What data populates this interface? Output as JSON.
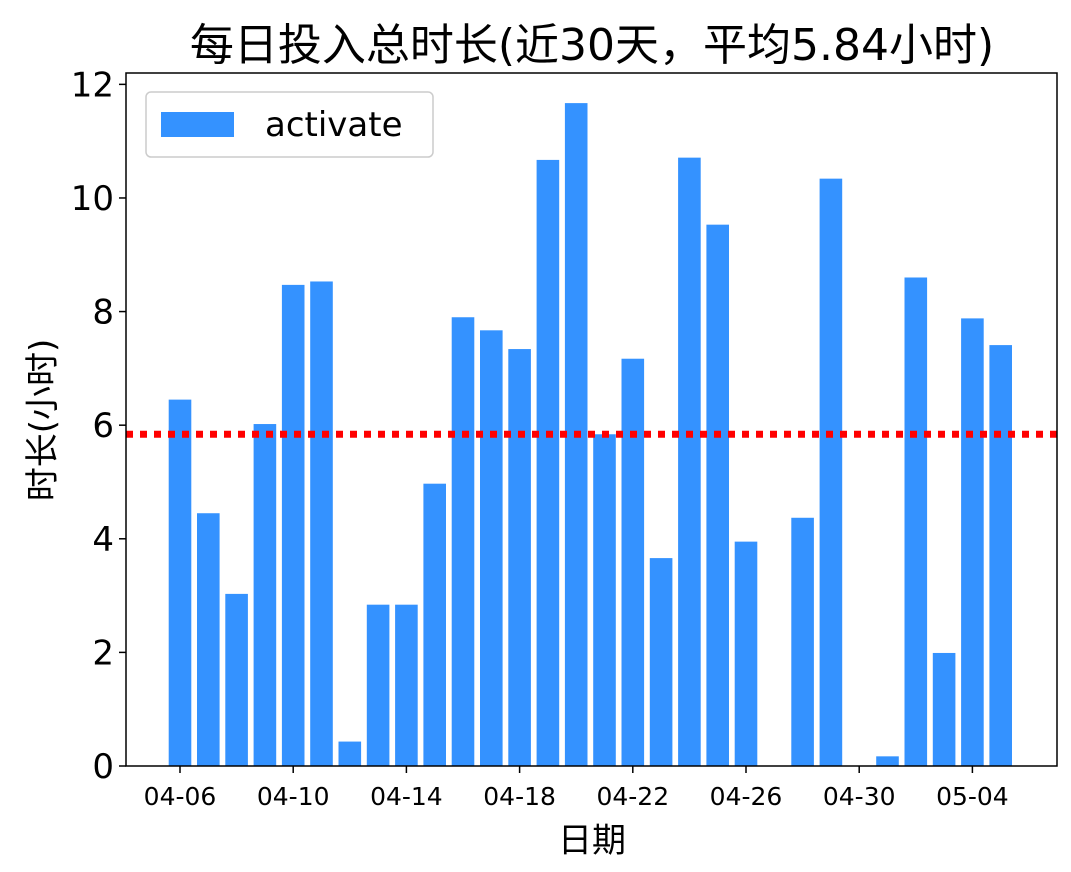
{
  "chart_data": {
    "type": "bar",
    "title": "每日投入总时长(近30天，平均5.84小时)",
    "xlabel": "日期",
    "ylabel": "时长(小时)",
    "ylim": [
      0,
      12.2
    ],
    "yticks": [
      0,
      2,
      4,
      6,
      8,
      10,
      12
    ],
    "xticks": [
      "04-06",
      "04-10",
      "04-14",
      "04-18",
      "04-22",
      "04-26",
      "04-30",
      "05-04"
    ],
    "legend": {
      "placement": "top-left",
      "entries": [
        "activate"
      ]
    },
    "average_line": {
      "value": 5.84,
      "color": "#ff0000",
      "style": "dotted"
    },
    "grid": false,
    "bar_color": "#3492ff",
    "series": [
      {
        "name": "activate",
        "categories": [
          "04-06",
          "04-07",
          "04-08",
          "04-09",
          "04-10",
          "04-11",
          "04-12",
          "04-13",
          "04-14",
          "04-15",
          "04-16",
          "04-17",
          "04-18",
          "04-19",
          "04-20",
          "04-21",
          "04-22",
          "04-23",
          "04-24",
          "04-25",
          "04-26",
          "04-27",
          "04-28",
          "04-29",
          "04-30",
          "05-01",
          "05-02",
          "05-03",
          "05-04",
          "05-05"
        ],
        "values": [
          6.45,
          4.45,
          3.03,
          6.02,
          8.47,
          8.53,
          0.43,
          2.84,
          2.84,
          4.97,
          7.9,
          7.67,
          7.34,
          10.67,
          11.67,
          5.84,
          7.17,
          3.66,
          10.71,
          9.53,
          3.95,
          0,
          4.37,
          10.34,
          0,
          0.17,
          8.6,
          1.99,
          7.88,
          7.41
        ]
      }
    ]
  }
}
